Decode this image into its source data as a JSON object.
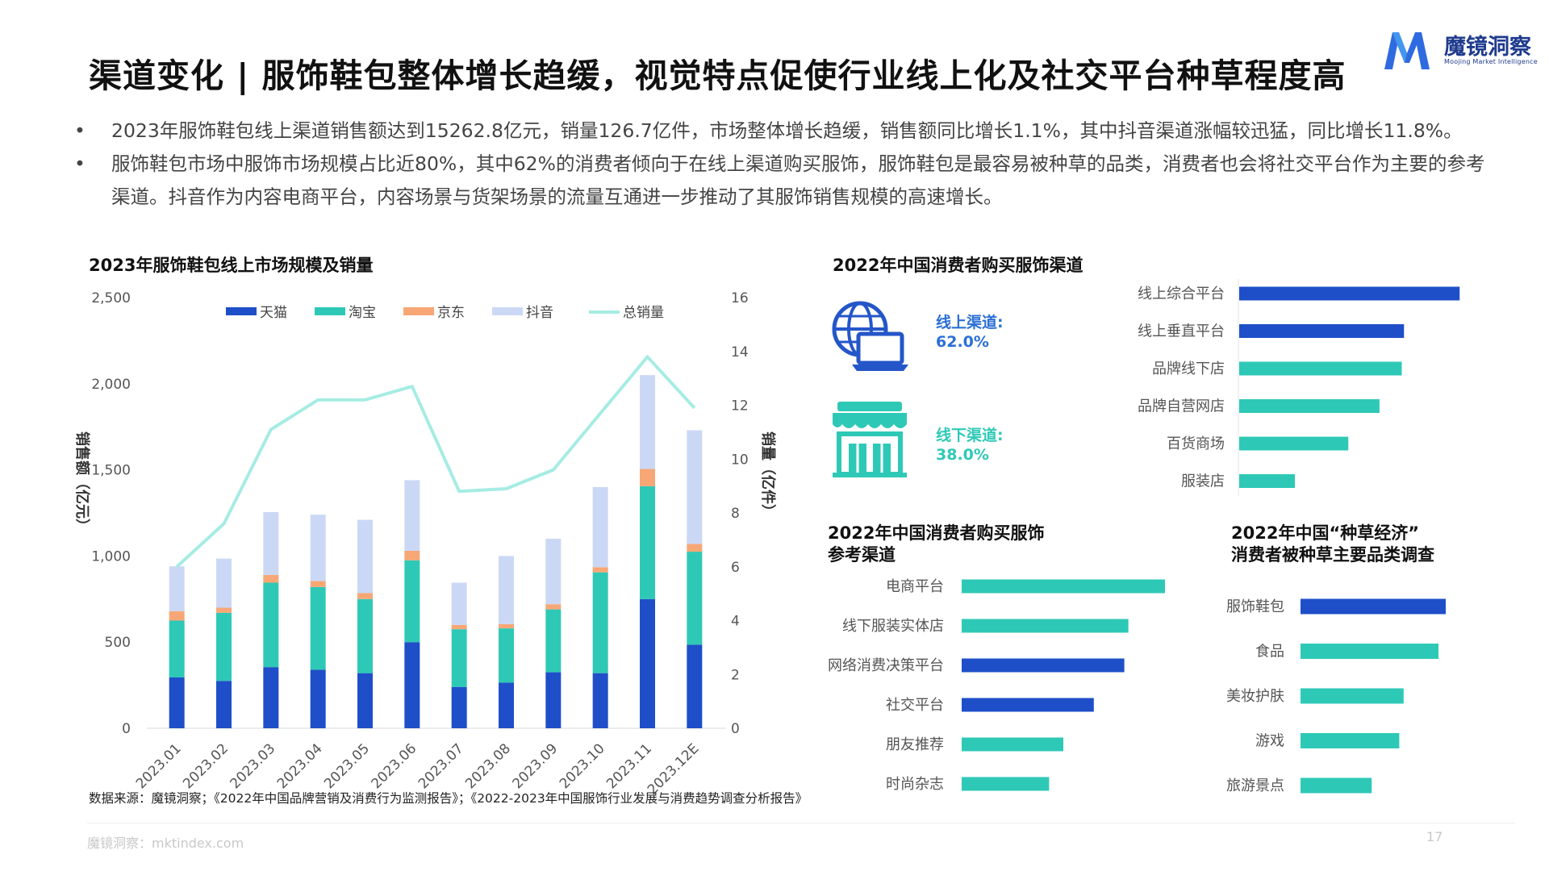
{
  "header": {
    "title": "渠道变化 | 服饰鞋包整体增长趋缓，视觉特点促使行业线上化及社交平台种草程度高",
    "logo_text": "魔镜洞察",
    "logo_subtitle": "Moojing Market Intelligence"
  },
  "bullets": [
    "2023年服饰鞋包线上渠道销售额达到15262.8亿元，销量126.7亿件，市场整体增长趋缓，销售额同比增长1.1%，其中抖音渠道涨幅较迅猛，同比增长11.8%。",
    "服饰鞋包市场中服饰市场规模占比近80%，其中62%的消费者倾向于在线上渠道购买服饰，服饰鞋包是最容易被种草的品类，消费者也会将社交平台作为主要的参考渠道。抖音作为内容电商平台，内容场景与货架场景的流量互通进一步推动了其服饰销售规模的高速增长。"
  ],
  "sections": {
    "main_chart_title": "2023年服饰鞋包线上市场规模及销量",
    "channel_title": "2022年中国消费者购买服饰渠道",
    "reference_title_line1": "2022年中国消费者购买服饰",
    "reference_title_line2": "参考渠道",
    "seeding_title_line1": "2022年中国“种草经济”",
    "seeding_title_line2": "消费者被种草主要品类调查"
  },
  "channel_split": {
    "online_label": "线上渠道:",
    "online_value": "62.0%",
    "offline_label": "线下渠道:",
    "offline_value": "38.0%",
    "icons": [
      "globe-laptop-icon",
      "storefront-icon"
    ]
  },
  "colors": {
    "tmall": "#1e4fc8",
    "taobao": "#2ec9b6",
    "jd": "#f7a776",
    "douyin": "#cbd8f5",
    "total_line": "#a6ece3",
    "bar_blue": "#1e4fc8",
    "bar_teal": "#2ec9b6",
    "accent_text": "#2b6fd6"
  },
  "chart_data": [
    {
      "type": "bar",
      "stacked": true,
      "ylabel": "销售额（亿元）",
      "y2label": "销量（亿件）",
      "ylim": [
        0,
        2500
      ],
      "yticks": [
        "0",
        "500",
        "1,000",
        "1,500",
        "2,000",
        "2,500"
      ],
      "y2lim": [
        0,
        16
      ],
      "y2ticks": [
        "0",
        "2",
        "4",
        "6",
        "8",
        "10",
        "12",
        "14",
        "16"
      ],
      "categories": [
        "2023.01",
        "2023.02",
        "2023.03",
        "2023.04",
        "2023.05",
        "2023.06",
        "2023.07",
        "2023.08",
        "2023.09",
        "2023.10",
        "2023.11",
        "2023.12E"
      ],
      "series": [
        {
          "name": "天猫",
          "values": [
            295,
            275,
            355,
            340,
            320,
            500,
            240,
            265,
            325,
            320,
            750,
            485
          ]
        },
        {
          "name": "淘宝",
          "values": [
            330,
            395,
            490,
            480,
            430,
            475,
            335,
            315,
            365,
            585,
            655,
            540
          ]
        },
        {
          "name": "京东",
          "values": [
            55,
            30,
            45,
            35,
            35,
            55,
            25,
            25,
            30,
            30,
            100,
            45
          ]
        },
        {
          "name": "抖音",
          "values": [
            260,
            285,
            365,
            385,
            425,
            410,
            245,
            395,
            380,
            465,
            545,
            660
          ]
        }
      ],
      "line": {
        "name": "总销量",
        "axis": "right",
        "values": [
          6.0,
          7.6,
          11.1,
          12.2,
          12.2,
          12.7,
          8.8,
          8.9,
          9.6,
          11.7,
          13.8,
          11.9
        ]
      },
      "legend": [
        "天猫",
        "淘宝",
        "京东",
        "抖音",
        "总销量"
      ],
      "legend_position": "top"
    },
    {
      "type": "bar",
      "orientation": "horizontal",
      "title": "2022年中国消费者购买服饰渠道",
      "categories": [
        "线上综合平台",
        "线上垂直平台",
        "品牌线下店",
        "品牌自营网店",
        "百货商场",
        "服装店"
      ],
      "values": [
        0.99,
        0.74,
        0.73,
        0.63,
        0.49,
        0.25
      ],
      "colors": [
        "blue",
        "blue",
        "teal",
        "teal",
        "teal",
        "teal"
      ]
    },
    {
      "type": "bar",
      "orientation": "horizontal",
      "title": "2022年中国消费者购买服饰参考渠道",
      "categories": [
        "电商平台",
        "线下服装实体店",
        "网络消费决策平台",
        "社交平台",
        "朋友推荐",
        "时尚杂志"
      ],
      "values": [
        1.0,
        0.82,
        0.8,
        0.65,
        0.5,
        0.43
      ],
      "colors": [
        "teal",
        "teal",
        "blue",
        "blue",
        "teal",
        "teal"
      ]
    },
    {
      "type": "bar",
      "orientation": "horizontal",
      "title": "2022年中国“种草经济”消费者被种草主要品类调查",
      "categories": [
        "服饰鞋包",
        "食品",
        "美妆护肤",
        "游戏",
        "旅游景点"
      ],
      "values": [
        1.0,
        0.95,
        0.71,
        0.68,
        0.49
      ],
      "colors": [
        "blue",
        "teal",
        "teal",
        "teal",
        "teal"
      ]
    }
  ],
  "footer": {
    "source": "数据来源：魔镜洞察；《2022年中国品牌营销及消费行为监测报告》；《2022-2023年中国服饰行业发展与消费趋势调查分析报告》",
    "url": "魔镜洞察：mktindex.com",
    "page_number": "17"
  }
}
